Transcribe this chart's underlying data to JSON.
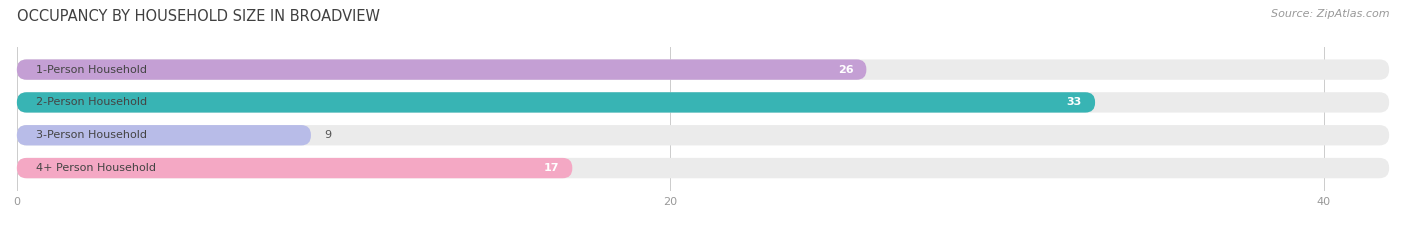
{
  "title": "OCCUPANCY BY HOUSEHOLD SIZE IN BROADVIEW",
  "source": "Source: ZipAtlas.com",
  "categories": [
    "1-Person Household",
    "2-Person Household",
    "3-Person Household",
    "4+ Person Household"
  ],
  "values": [
    26,
    33,
    9,
    17
  ],
  "bar_colors": [
    "#c49fd4",
    "#38b4b4",
    "#b8bce8",
    "#f4a8c4"
  ],
  "bar_bg_color": "#ebebeb",
  "xlim": [
    0,
    42
  ],
  "xticks": [
    0,
    20,
    40
  ],
  "title_fontsize": 10.5,
  "source_fontsize": 8,
  "label_fontsize": 8,
  "value_fontsize": 8,
  "bar_height": 0.62,
  "background_color": "#ffffff"
}
